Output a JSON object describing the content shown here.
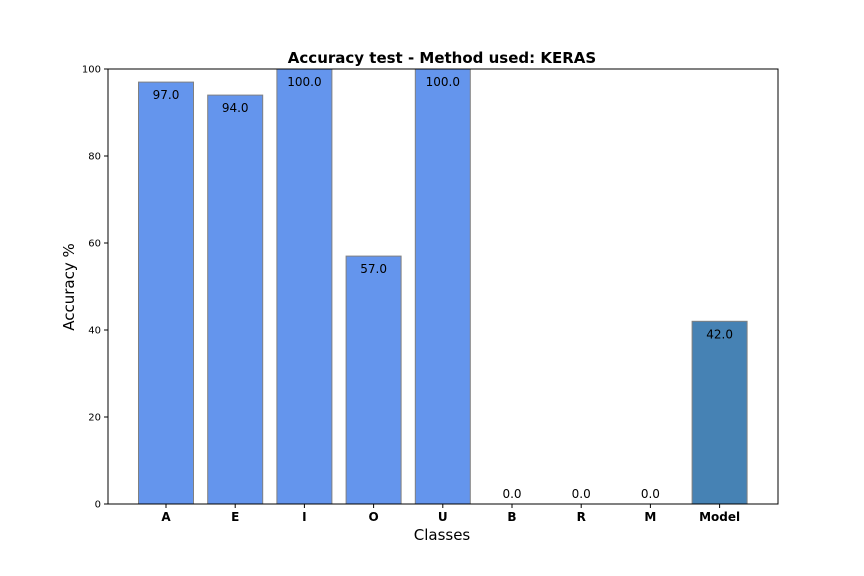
{
  "chart_data": {
    "type": "bar",
    "title": "Accuracy test - Method used: KERAS",
    "xlabel": "Classes",
    "ylabel": "Accuracy %",
    "ylim": [
      0,
      100
    ],
    "yticks": [
      0,
      20,
      40,
      60,
      80,
      100
    ],
    "categories": [
      "A",
      "E",
      "I",
      "O",
      "U",
      "B",
      "R",
      "M",
      "Model"
    ],
    "values": [
      97.0,
      94.0,
      100.0,
      57.0,
      100.0,
      0.0,
      0.0,
      0.0,
      42.0
    ],
    "data_labels": [
      "97.0",
      "94.0",
      "100.0",
      "57.0",
      "100.0",
      "0.0",
      "0.0",
      "0.0",
      "42.0"
    ],
    "bar_colors": [
      "#6495ED",
      "#6495ED",
      "#6495ED",
      "#6495ED",
      "#6495ED",
      "#6495ED",
      "#6495ED",
      "#6495ED",
      "#4682B4"
    ],
    "bar_edge_color": "#808080",
    "grid": false,
    "legend": "none"
  }
}
